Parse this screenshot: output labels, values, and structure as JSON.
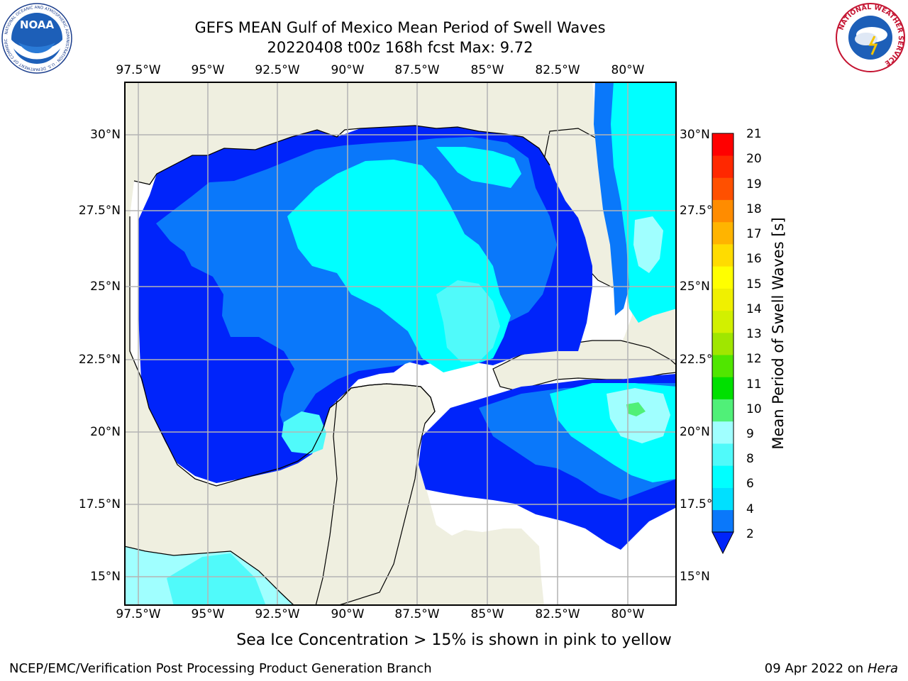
{
  "title": {
    "line1": "GEFS MEAN Gulf of Mexico Mean Period of Swell Waves",
    "line2": "20220408 t00z 168h fcst   Max: 9.72"
  },
  "map": {
    "longitude_ticks": [
      "97.5°W",
      "95°W",
      "92.5°W",
      "90°W",
      "87.5°W",
      "85°W",
      "82.5°W",
      "80°W"
    ],
    "latitude_ticks_left": [
      "30°N",
      "27.5°N",
      "25°N",
      "22.5°N",
      "20°N",
      "17.5°N",
      "15°N"
    ],
    "latitude_ticks_right": [
      "30°N",
      "27.5°",
      "25°N",
      "22.5°",
      "20°N",
      "17.5°",
      "15°N"
    ],
    "colors": {
      "land": "#efefe0",
      "no_data": "#ffffff",
      "grid": "#b4b4b4"
    }
  },
  "colorbar": {
    "label": "Mean Period of Swell Waves [s]",
    "ticks": [
      "2",
      "4",
      "6",
      "8",
      "9",
      "10",
      "11",
      "12",
      "13",
      "14",
      "15",
      "16",
      "17",
      "18",
      "19",
      "20",
      "21"
    ],
    "colors": [
      "#0024fa",
      "#0a78fa",
      "#00e0ff",
      "#00ffff",
      "#50fafa",
      "#a0ffff",
      "#50f078",
      "#00e000",
      "#50e600",
      "#a0e600",
      "#d2f000",
      "#f0f000",
      "#ffff00",
      "#ffdc00",
      "#ffb400",
      "#ff8c00",
      "#ff5000",
      "#ff2800",
      "#ff0000"
    ]
  },
  "footnote": "Sea Ice Concentration > 15% is shown in pink to yellow",
  "credit_left": "NCEP/EMC/Verification Post Processing Product Generation Branch",
  "credit_right": {
    "date": "09 Apr 2022 on ",
    "host": "Hera"
  },
  "logos": {
    "noaa": {
      "text": "NOAA",
      "ring_text": "NATIONAL OCEANIC AND ATMOSPHERIC ADMINISTRATION · U.S. DEPARTMENT OF COMMERCE"
    },
    "nws": {
      "ring_text": "NATIONAL WEATHER SERVICE"
    }
  }
}
